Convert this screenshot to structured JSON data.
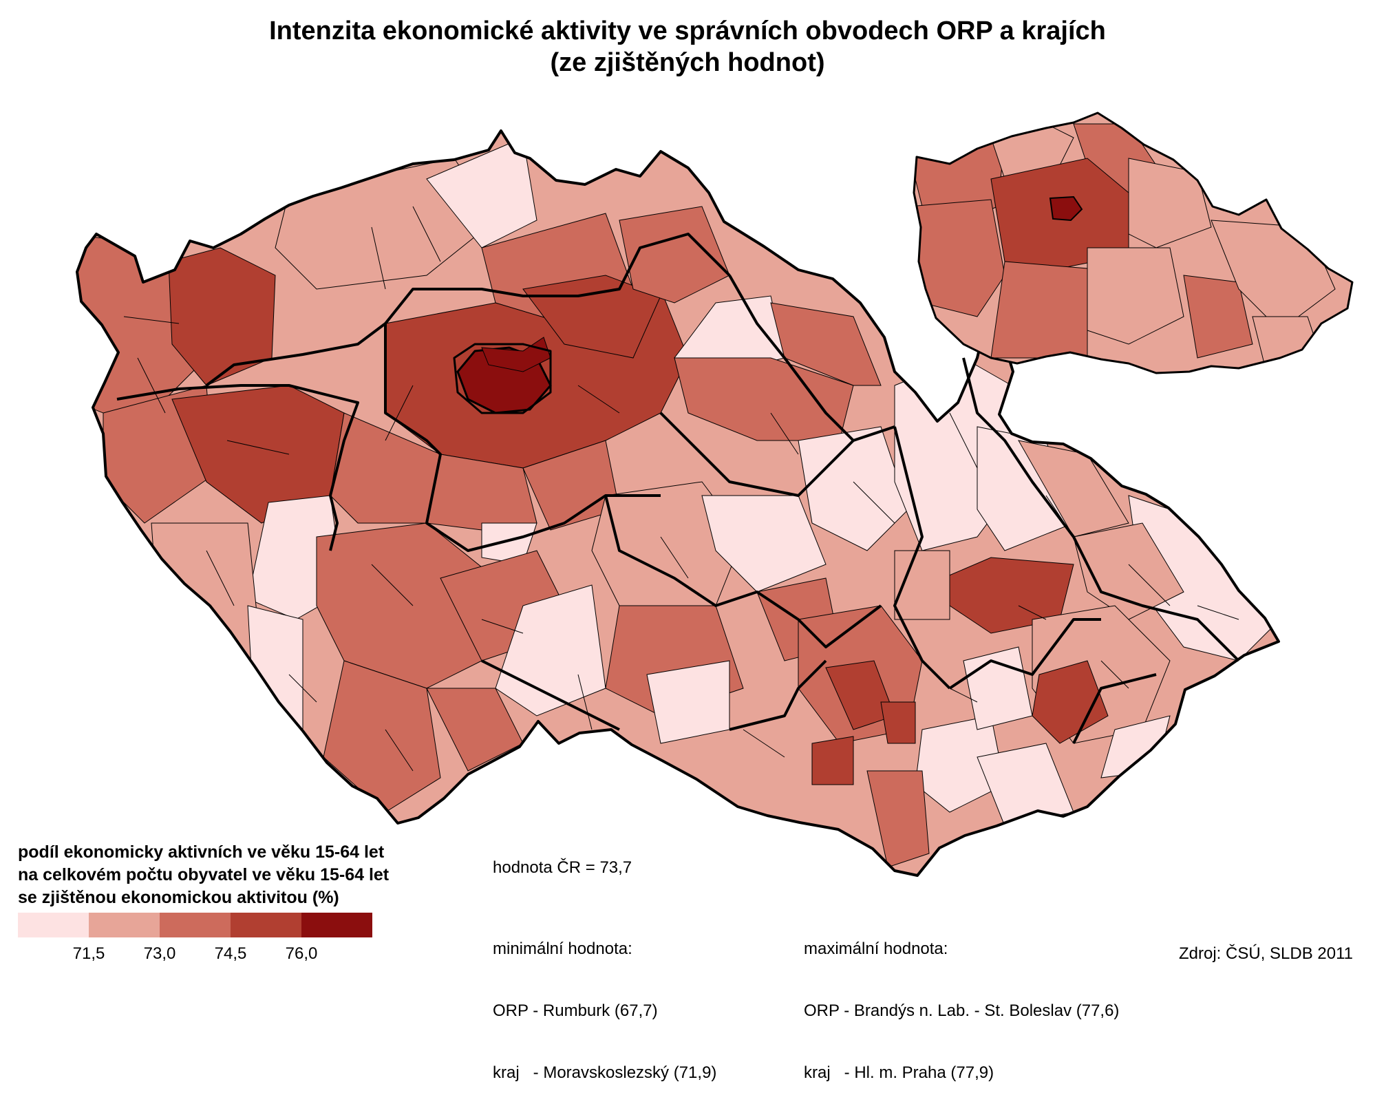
{
  "title": {
    "line1": "Intenzita ekonomické aktivity ve správních obvodech ORP a krajích",
    "line2": "(ze zjištěných hodnot)"
  },
  "legend": {
    "title_lines": [
      "podíl ekonomicky aktivních ve věku 15-64 let",
      "na celkovém počtu obyvatel ve věku 15-64 let",
      "se zjištěnou ekonomickou aktivitou (%)"
    ],
    "colors": [
      "#fde2e2",
      "#e7a598",
      "#cd6b5c",
      "#b13f31",
      "#8b0e0e"
    ],
    "ticks": [
      "71,5",
      "73,0",
      "74,5",
      "76,0"
    ]
  },
  "stats": {
    "national": "hodnota ČR = 73,7",
    "min_label": "minimální hodnota:",
    "min_orp": "ORP - Rumburk (67,7)",
    "min_kraj": "kraj   - Moravskoslezský (71,9)",
    "max_label": "maximální hodnota:",
    "max_orp": "ORP - Brandýs n. Lab. - St. Boleslav (77,6)",
    "max_kraj": "kraj   - Hl. m. Praha (77,9)"
  },
  "source": "Zdroj: ČSÚ, SLDB 2011"
}
